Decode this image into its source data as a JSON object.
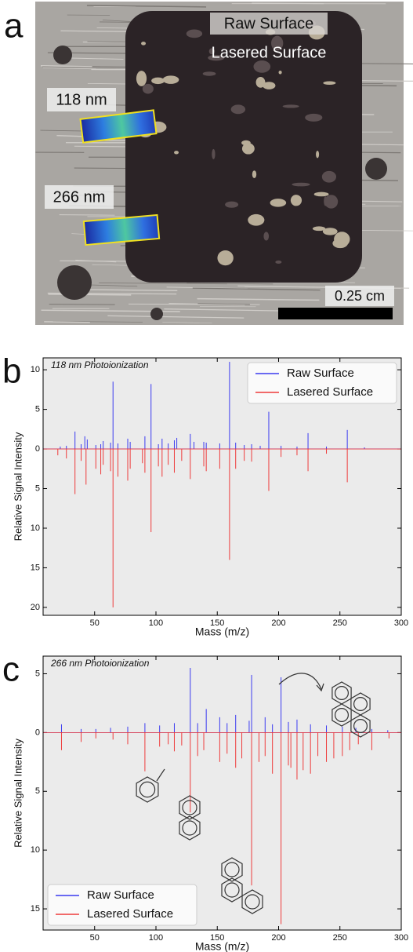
{
  "figure_a": {
    "panel": "a",
    "raw_label": "Raw Surface",
    "lasered_label": "Lasered Surface",
    "label_118": "118 nm",
    "label_266": "266 nm",
    "scale_label": "0.25 cm"
  },
  "chart_data": [
    {
      "type": "spectrum",
      "panel": "b",
      "title": "118 nm Photoionization",
      "x_label": "Mass (m/z)",
      "y_label": "Relative Signal Intensity",
      "xlim": [
        8,
        300
      ],
      "xticks": [
        50,
        100,
        150,
        200,
        250,
        300
      ],
      "ylim": [
        -21,
        11.5
      ],
      "yticks": [
        10,
        5,
        0,
        {
          "value": -5,
          "label": "5"
        },
        {
          "value": -10,
          "label": "10"
        },
        {
          "value": -15,
          "label": "15"
        },
        {
          "value": -20,
          "label": "20"
        }
      ],
      "legend": "upper right",
      "series": [
        {
          "name": "Raw Surface",
          "color": "#3b3bf0",
          "x": [
            22,
            27,
            34,
            39,
            42,
            44,
            51,
            55,
            57,
            63,
            65,
            69,
            77,
            79,
            91,
            96,
            102,
            105,
            110,
            115,
            117,
            128,
            131,
            139,
            141,
            152,
            160,
            165,
            172,
            178,
            185,
            192,
            202,
            215,
            224,
            239,
            256,
            270
          ],
          "values": [
            0.3,
            0.4,
            2.2,
            0.6,
            1.6,
            1.2,
            0.5,
            0.6,
            1.0,
            0.8,
            8.5,
            0.7,
            1.3,
            0.9,
            1.6,
            8.2,
            0.6,
            1.3,
            0.7,
            1.1,
            1.4,
            1.9,
            0.9,
            0.9,
            0.8,
            0.7,
            11,
            0.8,
            0.5,
            0.6,
            0.4,
            4.7,
            0.4,
            0.3,
            2.0,
            0.3,
            2.4,
            0.2
          ]
        },
        {
          "name": "Lasered Surface",
          "color": "#ee3b3b",
          "x": [
            20,
            27,
            34,
            39,
            43,
            51,
            55,
            57,
            63,
            65,
            69,
            77,
            79,
            89,
            91,
            96,
            102,
            105,
            110,
            115,
            121,
            128,
            139,
            141,
            152,
            160,
            165,
            172,
            178,
            192,
            202,
            215,
            224,
            239,
            256
          ],
          "values": [
            -0.8,
            -1.2,
            -5.7,
            -1.5,
            -4.5,
            -2.5,
            -3.2,
            -2.0,
            -2.8,
            -20,
            -3.5,
            -4.0,
            -2.5,
            -1.8,
            -3.0,
            -10.5,
            -2.2,
            -3.5,
            -2.0,
            -3.0,
            -1.5,
            -3.8,
            -2.2,
            -2.8,
            -2.5,
            -14,
            -2.5,
            -1.5,
            -1.6,
            -5.3,
            -1.0,
            -0.8,
            -2.8,
            -0.6,
            -4.2
          ]
        }
      ]
    },
    {
      "type": "spectrum",
      "panel": "c",
      "title": "266 nm Photoionization",
      "x_label": "Mass (m/z)",
      "y_label": "Relative Signal Intensity",
      "xlim": [
        8,
        300
      ],
      "xticks": [
        50,
        100,
        150,
        200,
        250,
        300
      ],
      "ylim": [
        -16.8,
        6.5
      ],
      "yticks": [
        5,
        0,
        {
          "value": -5,
          "label": "5"
        },
        {
          "value": -10,
          "label": "10"
        },
        {
          "value": -15,
          "label": "15"
        }
      ],
      "legend": "lower left",
      "series": [
        {
          "name": "Raw Surface",
          "color": "#3b3bf0",
          "x": [
            23,
            39,
            51,
            63,
            77,
            91,
            103,
            115,
            128,
            134,
            141,
            152,
            158,
            165,
            176,
            178,
            189,
            195,
            202,
            208,
            215,
            226,
            239,
            252,
            263,
            276,
            289
          ],
          "values": [
            0.7,
            0.3,
            0.3,
            0.4,
            0.5,
            0.8,
            0.6,
            0.8,
            5.5,
            0.8,
            2.0,
            1.3,
            0.8,
            1.5,
            1.0,
            4.9,
            1.3,
            0.7,
            4.7,
            0.9,
            1.1,
            0.7,
            0.6,
            0.5,
            0.4,
            0.3,
            0.2
          ]
        },
        {
          "name": "Lasered Surface",
          "color": "#ee3b3b",
          "x": [
            23,
            39,
            51,
            65,
            77,
            91,
            103,
            110,
            115,
            121,
            128,
            134,
            139,
            152,
            158,
            165,
            170,
            178,
            184,
            189,
            195,
            202,
            208,
            210,
            215,
            220,
            226,
            232,
            239,
            245,
            252,
            258,
            265,
            276,
            290
          ],
          "values": [
            -1.5,
            -0.8,
            -0.5,
            -0.6,
            -1.0,
            -3.3,
            -1.2,
            -1.0,
            -1.6,
            -1.1,
            -6.8,
            -2.0,
            -1.5,
            -2.5,
            -1.8,
            -3.0,
            -2.2,
            -13,
            -2.5,
            -2.0,
            -3.5,
            -16.3,
            -2.8,
            -3.0,
            -4.0,
            -3.2,
            -3.5,
            -2.0,
            -2.5,
            -2.2,
            -2.0,
            -1.5,
            -1.0,
            -1.5,
            -0.5
          ]
        }
      ]
    }
  ]
}
